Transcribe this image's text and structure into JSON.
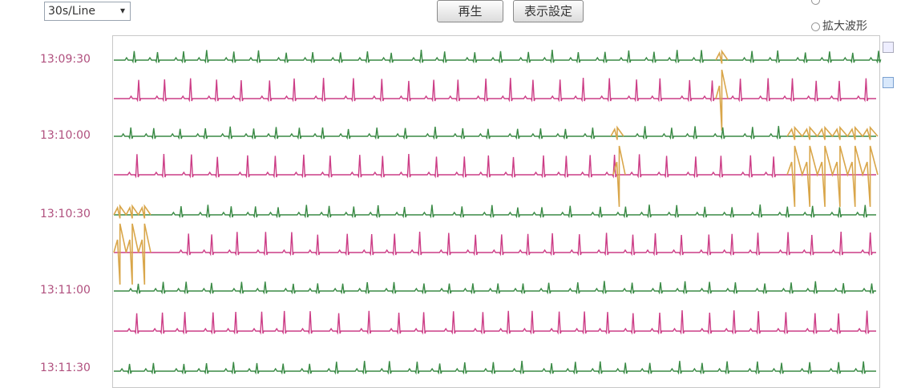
{
  "toolbar": {
    "line_select": "30s/Line",
    "play_button": "再生",
    "display_settings_button": "表示設定",
    "view_option": "拡大波形"
  },
  "time_labels": [
    "13:09:30",
    "13:10:00",
    "13:10:30",
    "13:11:00",
    "13:11:30"
  ]
}
